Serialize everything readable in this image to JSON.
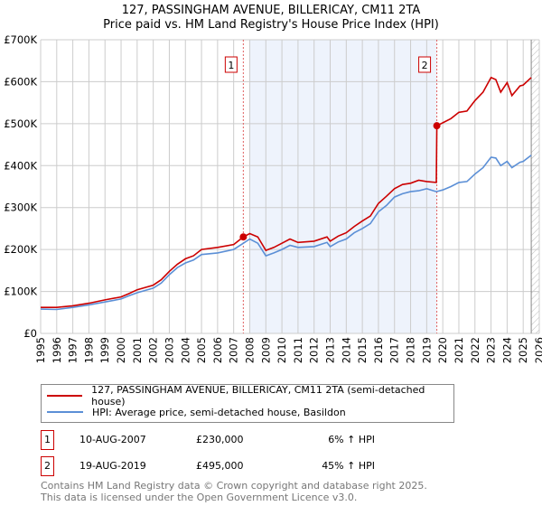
{
  "chart_data": {
    "type": "line",
    "title": "127, PASSINGHAM AVENUE, BILLERICAY, CM11 2TA",
    "subtitle": "Price paid vs. HM Land Registry's House Price Index (HPI)",
    "xlim": [
      1995,
      2026
    ],
    "ylim": [
      0,
      700000
    ],
    "y_ticks": [
      {
        "v": 0,
        "label": "£0"
      },
      {
        "v": 100000,
        "label": "£100K"
      },
      {
        "v": 200000,
        "label": "£200K"
      },
      {
        "v": 300000,
        "label": "£300K"
      },
      {
        "v": 400000,
        "label": "£400K"
      },
      {
        "v": 500000,
        "label": "£500K"
      },
      {
        "v": 600000,
        "label": "£600K"
      },
      {
        "v": 700000,
        "label": "£700K"
      }
    ],
    "x_ticks": [
      "1995",
      "1996",
      "1997",
      "1998",
      "1999",
      "2000",
      "2001",
      "2002",
      "2003",
      "2004",
      "2005",
      "2006",
      "2007",
      "2008",
      "2009",
      "2010",
      "2011",
      "2012",
      "2013",
      "2014",
      "2015",
      "2016",
      "2017",
      "2018",
      "2019",
      "2020",
      "2021",
      "2022",
      "2023",
      "2024",
      "2025",
      "2026"
    ],
    "grid": true,
    "shaded_range": [
      2008.0,
      2019.63
    ],
    "hatched_from": 2025.5,
    "series": [
      {
        "name": "127, PASSINGHAM AVENUE, BILLERICAY, CM11 2TA (semi-detached house)",
        "color": "#cc0000",
        "x": [
          1995,
          1996,
          1997,
          1998,
          1999,
          2000,
          2000.5,
          2001,
          2002,
          2002.5,
          2003,
          2003.5,
          2004,
          2004.5,
          2005,
          2006,
          2007,
          2007.6,
          2008,
          2008.5,
          2009,
          2009.5,
          2010,
          2010.5,
          2011,
          2012,
          2012.8,
          2013,
          2013.5,
          2014,
          2014.5,
          2015,
          2015.5,
          2016,
          2016.5,
          2017,
          2017.5,
          2018,
          2018.5,
          2019,
          2019.6,
          2019.63,
          2020,
          2020.5,
          2021,
          2021.5,
          2022,
          2022.5,
          2023,
          2023.3,
          2023.6,
          2024,
          2024.3,
          2024.8,
          2025,
          2025.5
        ],
        "y": [
          62000,
          62000,
          66000,
          72000,
          80000,
          87000,
          95000,
          104000,
          115000,
          128000,
          148000,
          165000,
          178000,
          185000,
          200000,
          205000,
          212000,
          230000,
          238000,
          230000,
          198000,
          205000,
          215000,
          225000,
          217000,
          220000,
          230000,
          220000,
          232000,
          240000,
          255000,
          268000,
          280000,
          310000,
          327000,
          345000,
          355000,
          358000,
          365000,
          362000,
          360000,
          495000,
          502000,
          512000,
          527000,
          530000,
          555000,
          575000,
          610000,
          605000,
          575000,
          598000,
          567000,
          590000,
          592000,
          610000
        ]
      },
      {
        "name": "HPI: Average price, semi-detached house, Basildon",
        "color": "#5b8fd6",
        "x": [
          1995,
          1996,
          1997,
          1998,
          1999,
          2000,
          2000.5,
          2001,
          2002,
          2002.5,
          2003,
          2003.5,
          2004,
          2004.5,
          2005,
          2006,
          2007,
          2007.6,
          2008,
          2008.5,
          2009,
          2009.5,
          2010,
          2010.5,
          2011,
          2012,
          2012.8,
          2013,
          2013.5,
          2014,
          2014.5,
          2015,
          2015.5,
          2016,
          2016.5,
          2017,
          2017.5,
          2018,
          2018.5,
          2019,
          2019.6,
          2020,
          2020.5,
          2021,
          2021.5,
          2022,
          2022.5,
          2023,
          2023.3,
          2023.6,
          2024,
          2024.3,
          2024.8,
          2025,
          2025.5
        ],
        "y": [
          58000,
          57000,
          62000,
          68000,
          75000,
          82000,
          90000,
          97000,
          108000,
          120000,
          140000,
          157000,
          168000,
          175000,
          188000,
          192000,
          200000,
          215000,
          225000,
          215000,
          185000,
          192000,
          200000,
          210000,
          205000,
          207000,
          217000,
          207000,
          218000,
          225000,
          240000,
          250000,
          262000,
          290000,
          305000,
          325000,
          333000,
          338000,
          340000,
          345000,
          338000,
          342000,
          350000,
          360000,
          362000,
          380000,
          395000,
          420000,
          418000,
          400000,
          410000,
          395000,
          408000,
          410000,
          425000
        ]
      }
    ],
    "markers": [
      {
        "label": "1",
        "x": 2007.6,
        "y": 230000
      },
      {
        "label": "2",
        "x": 2019.63,
        "y": 495000
      }
    ]
  },
  "legend": {
    "property": "127, PASSINGHAM AVENUE, BILLERICAY, CM11 2TA (semi-detached house)",
    "hpi": "HPI: Average price, semi-detached house, Basildon"
  },
  "transactions": [
    {
      "num": "1",
      "date": "10-AUG-2007",
      "price": "£230,000",
      "hpi": "6% ↑ HPI"
    },
    {
      "num": "2",
      "date": "19-AUG-2019",
      "price": "£495,000",
      "hpi": "45% ↑ HPI"
    }
  ],
  "footer": {
    "line1": "Contains HM Land Registry data © Crown copyright and database right 2025.",
    "line2": "This data is licensed under the Open Government Licence v3.0."
  }
}
